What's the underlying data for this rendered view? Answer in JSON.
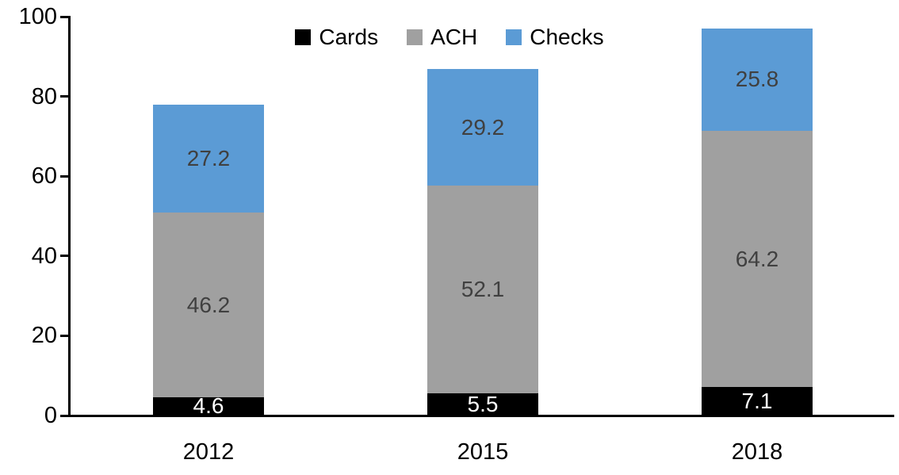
{
  "chart_data": {
    "type": "bar",
    "stacked": true,
    "title": "",
    "xlabel": "",
    "ylabel": "",
    "categories": [
      "2012",
      "2015",
      "2018"
    ],
    "series": [
      {
        "name": "Cards",
        "color": "#000000",
        "label_color": "#ffffff",
        "values": [
          4.6,
          5.5,
          7.1
        ]
      },
      {
        "name": "ACH",
        "color": "#a0a0a0",
        "label_color": "#404040",
        "values": [
          46.2,
          52.1,
          64.2
        ]
      },
      {
        "name": "Checks",
        "color": "#5b9bd5",
        "label_color": "#404040",
        "values": [
          27.2,
          29.2,
          25.8
        ]
      }
    ],
    "totals": [
      78.0,
      86.8,
      97.1
    ],
    "ylim": [
      0,
      100
    ],
    "y_ticks": [
      "0",
      "20",
      "40",
      "60",
      "80",
      "100"
    ],
    "y_tick_values": [
      0,
      20,
      40,
      60,
      80,
      100
    ],
    "grid": "off",
    "legend_position": "top",
    "axis_color": "#000000",
    "background_color": "#ffffff"
  }
}
